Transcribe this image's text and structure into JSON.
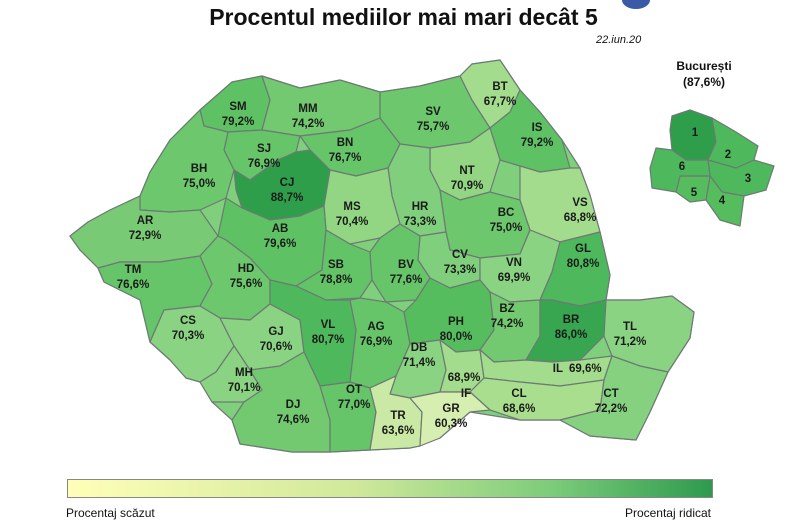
{
  "title": "Procentul mediilor mai mari decât 5",
  "date": "22.iun.20",
  "bucharest": {
    "name": "București",
    "value": "(87,6%)",
    "sectors": [
      "1",
      "2",
      "3",
      "4",
      "5",
      "6"
    ]
  },
  "legend": {
    "low_label": "Procentaj scăzut",
    "high_label": "Procentaj ridicat",
    "low_color": "#ffffb8",
    "high_color": "#2e9a4e"
  },
  "counties": [
    {
      "code": "SM",
      "value": "79,2%"
    },
    {
      "code": "MM",
      "value": "74,2%"
    },
    {
      "code": "SV",
      "value": "75,7%"
    },
    {
      "code": "BT",
      "value": "67,7%"
    },
    {
      "code": "SJ",
      "value": "76,9%"
    },
    {
      "code": "BN",
      "value": "76,7%"
    },
    {
      "code": "IS",
      "value": "79,2%"
    },
    {
      "code": "BH",
      "value": "75,0%"
    },
    {
      "code": "CJ",
      "value": "88,7%"
    },
    {
      "code": "NT",
      "value": "70,9%"
    },
    {
      "code": "HR",
      "value": "73,3%"
    },
    {
      "code": "MS",
      "value": "70,4%"
    },
    {
      "code": "BC",
      "value": "75,0%"
    },
    {
      "code": "VS",
      "value": "68,8%"
    },
    {
      "code": "AR",
      "value": "72,9%"
    },
    {
      "code": "AB",
      "value": "79,6%"
    },
    {
      "code": "CV",
      "value": "73,3%"
    },
    {
      "code": "TM",
      "value": "76,6%"
    },
    {
      "code": "HD",
      "value": "75,6%"
    },
    {
      "code": "SB",
      "value": "78,8%"
    },
    {
      "code": "BV",
      "value": "77,6%"
    },
    {
      "code": "VN",
      "value": "69,9%"
    },
    {
      "code": "GL",
      "value": "80,8%"
    },
    {
      "code": "CS",
      "value": "70,3%"
    },
    {
      "code": "GJ",
      "value": "70,6%"
    },
    {
      "code": "VL",
      "value": "80,7%"
    },
    {
      "code": "AG",
      "value": "76,9%"
    },
    {
      "code": "PH",
      "value": "80,0%"
    },
    {
      "code": "BZ",
      "value": "74,2%"
    },
    {
      "code": "BR",
      "value": "86,0%"
    },
    {
      "code": "TL",
      "value": "71,2%"
    },
    {
      "code": "DB",
      "value": "71,4%"
    },
    {
      "code": "MH",
      "value": "70,1%"
    },
    {
      "code": "IF",
      "value": "68,9%"
    },
    {
      "code": "IL",
      "value": "69,6%"
    },
    {
      "code": "DJ",
      "value": "74,6%"
    },
    {
      "code": "OT",
      "value": "77,0%"
    },
    {
      "code": "CL",
      "value": "68,6%"
    },
    {
      "code": "CT",
      "value": "72,2%"
    },
    {
      "code": "TR",
      "value": "63,6%"
    },
    {
      "code": "GR",
      "value": "60,3%"
    }
  ]
}
